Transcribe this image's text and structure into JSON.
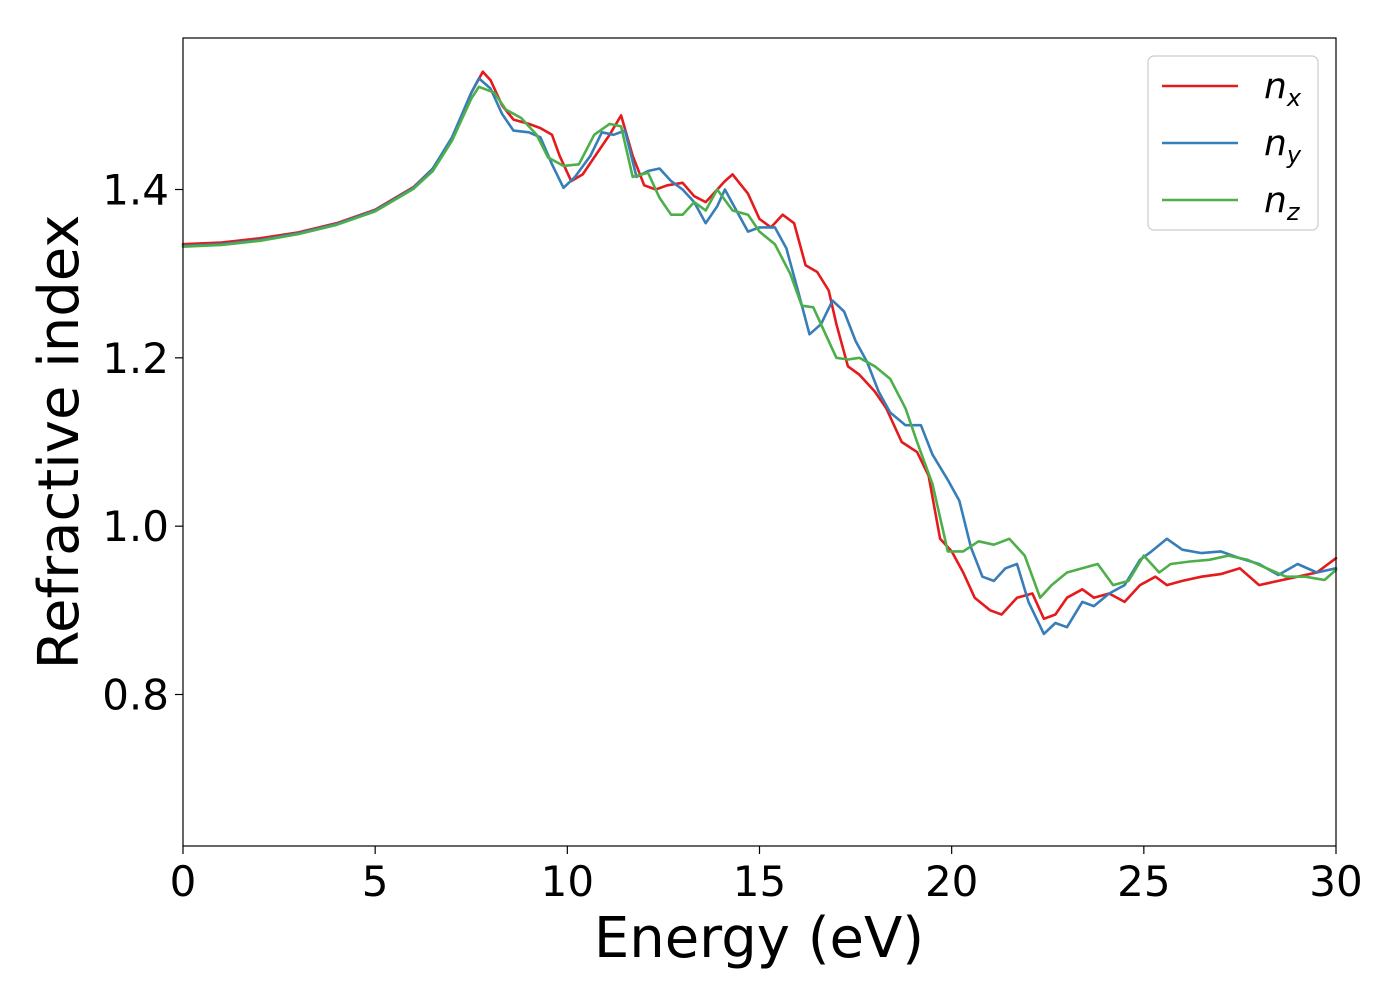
{
  "chart_data": {
    "type": "line",
    "title": "",
    "xlabel": "Energy (eV)",
    "ylabel": "Refractive index",
    "xlim": [
      0,
      30
    ],
    "ylim": [
      0.62,
      1.58
    ],
    "xticks": [
      0,
      5,
      10,
      15,
      20,
      25,
      30
    ],
    "xtick_labels": [
      "0",
      "5",
      "10",
      "15",
      "20",
      "25",
      "30"
    ],
    "yticks": [
      0.8,
      1.0,
      1.2,
      1.4
    ],
    "ytick_labels": [
      "0.8",
      "1.0",
      "1.2",
      "1.4"
    ],
    "grid": false,
    "legend_position": "top-right",
    "series": [
      {
        "name": "n",
        "subscript": "x",
        "color": "#e41a1c",
        "points": [
          [
            0,
            1.335
          ],
          [
            1,
            1.337
          ],
          [
            2,
            1.342
          ],
          [
            3,
            1.349
          ],
          [
            4,
            1.36
          ],
          [
            5,
            1.376
          ],
          [
            6,
            1.403
          ],
          [
            6.5,
            1.425
          ],
          [
            7,
            1.46
          ],
          [
            7.5,
            1.515
          ],
          [
            7.8,
            1.54
          ],
          [
            8,
            1.53
          ],
          [
            8.3,
            1.5
          ],
          [
            8.6,
            1.483
          ],
          [
            9,
            1.478
          ],
          [
            9.3,
            1.473
          ],
          [
            9.6,
            1.465
          ],
          [
            9.8,
            1.44
          ],
          [
            10.1,
            1.41
          ],
          [
            10.4,
            1.418
          ],
          [
            10.8,
            1.445
          ],
          [
            11.1,
            1.465
          ],
          [
            11.4,
            1.488
          ],
          [
            11.7,
            1.44
          ],
          [
            12,
            1.405
          ],
          [
            12.3,
            1.4
          ],
          [
            12.6,
            1.405
          ],
          [
            13,
            1.408
          ],
          [
            13.3,
            1.392
          ],
          [
            13.6,
            1.385
          ],
          [
            13.8,
            1.395
          ],
          [
            14.1,
            1.41
          ],
          [
            14.3,
            1.418
          ],
          [
            14.7,
            1.395
          ],
          [
            15,
            1.365
          ],
          [
            15.3,
            1.355
          ],
          [
            15.6,
            1.37
          ],
          [
            15.9,
            1.36
          ],
          [
            16.2,
            1.31
          ],
          [
            16.5,
            1.302
          ],
          [
            16.8,
            1.28
          ],
          [
            17,
            1.24
          ],
          [
            17.3,
            1.19
          ],
          [
            17.6,
            1.18
          ],
          [
            18,
            1.16
          ],
          [
            18.3,
            1.14
          ],
          [
            18.7,
            1.1
          ],
          [
            19.1,
            1.088
          ],
          [
            19.4,
            1.06
          ],
          [
            19.7,
            0.985
          ],
          [
            20,
            0.97
          ],
          [
            20.3,
            0.945
          ],
          [
            20.6,
            0.915
          ],
          [
            21,
            0.9
          ],
          [
            21.3,
            0.895
          ],
          [
            21.7,
            0.915
          ],
          [
            22.1,
            0.92
          ],
          [
            22.4,
            0.89
          ],
          [
            22.7,
            0.895
          ],
          [
            23,
            0.915
          ],
          [
            23.4,
            0.925
          ],
          [
            23.7,
            0.915
          ],
          [
            24.1,
            0.92
          ],
          [
            24.5,
            0.91
          ],
          [
            24.9,
            0.93
          ],
          [
            25.3,
            0.94
          ],
          [
            25.6,
            0.93
          ],
          [
            26,
            0.935
          ],
          [
            26.5,
            0.94
          ],
          [
            27,
            0.943
          ],
          [
            27.5,
            0.95
          ],
          [
            28,
            0.93
          ],
          [
            28.5,
            0.935
          ],
          [
            29,
            0.94
          ],
          [
            29.5,
            0.945
          ],
          [
            30,
            0.962
          ]
        ]
      },
      {
        "name": "n",
        "subscript": "y",
        "color": "#377eb8",
        "points": [
          [
            0,
            1.333
          ],
          [
            1,
            1.335
          ],
          [
            2,
            1.34
          ],
          [
            3,
            1.348
          ],
          [
            4,
            1.359
          ],
          [
            5,
            1.375
          ],
          [
            6,
            1.402
          ],
          [
            6.5,
            1.425
          ],
          [
            7,
            1.462
          ],
          [
            7.5,
            1.515
          ],
          [
            7.7,
            1.532
          ],
          [
            8,
            1.52
          ],
          [
            8.3,
            1.49
          ],
          [
            8.6,
            1.47
          ],
          [
            9,
            1.468
          ],
          [
            9.3,
            1.462
          ],
          [
            9.6,
            1.43
          ],
          [
            9.9,
            1.402
          ],
          [
            10.2,
            1.415
          ],
          [
            10.6,
            1.44
          ],
          [
            10.9,
            1.468
          ],
          [
            11.2,
            1.465
          ],
          [
            11.5,
            1.47
          ],
          [
            11.8,
            1.415
          ],
          [
            12.1,
            1.422
          ],
          [
            12.4,
            1.425
          ],
          [
            12.7,
            1.41
          ],
          [
            13,
            1.4
          ],
          [
            13.3,
            1.385
          ],
          [
            13.6,
            1.36
          ],
          [
            13.9,
            1.38
          ],
          [
            14.1,
            1.4
          ],
          [
            14.4,
            1.375
          ],
          [
            14.7,
            1.35
          ],
          [
            15,
            1.355
          ],
          [
            15.4,
            1.355
          ],
          [
            15.7,
            1.33
          ],
          [
            16,
            1.28
          ],
          [
            16.3,
            1.228
          ],
          [
            16.6,
            1.24
          ],
          [
            16.9,
            1.268
          ],
          [
            17.2,
            1.255
          ],
          [
            17.5,
            1.22
          ],
          [
            17.8,
            1.195
          ],
          [
            18.1,
            1.16
          ],
          [
            18.4,
            1.135
          ],
          [
            18.8,
            1.12
          ],
          [
            19.2,
            1.12
          ],
          [
            19.5,
            1.085
          ],
          [
            19.9,
            1.055
          ],
          [
            20.2,
            1.03
          ],
          [
            20.5,
            0.975
          ],
          [
            20.8,
            0.94
          ],
          [
            21.1,
            0.935
          ],
          [
            21.4,
            0.95
          ],
          [
            21.7,
            0.955
          ],
          [
            22,
            0.91
          ],
          [
            22.4,
            0.872
          ],
          [
            22.7,
            0.885
          ],
          [
            23,
            0.88
          ],
          [
            23.4,
            0.91
          ],
          [
            23.7,
            0.905
          ],
          [
            24.1,
            0.92
          ],
          [
            24.5,
            0.93
          ],
          [
            24.9,
            0.96
          ],
          [
            25.2,
            0.97
          ],
          [
            25.6,
            0.985
          ],
          [
            26,
            0.972
          ],
          [
            26.5,
            0.968
          ],
          [
            27,
            0.97
          ],
          [
            27.5,
            0.962
          ],
          [
            28,
            0.955
          ],
          [
            28.5,
            0.942
          ],
          [
            29,
            0.955
          ],
          [
            29.5,
            0.945
          ],
          [
            30,
            0.95
          ]
        ]
      },
      {
        "name": "n",
        "subscript": "z",
        "color": "#4daf4a",
        "points": [
          [
            0,
            1.332
          ],
          [
            1,
            1.334
          ],
          [
            2,
            1.339
          ],
          [
            3,
            1.347
          ],
          [
            4,
            1.358
          ],
          [
            5,
            1.374
          ],
          [
            6,
            1.401
          ],
          [
            6.5,
            1.422
          ],
          [
            7,
            1.458
          ],
          [
            7.5,
            1.508
          ],
          [
            7.7,
            1.522
          ],
          [
            8.1,
            1.515
          ],
          [
            8.4,
            1.495
          ],
          [
            8.8,
            1.485
          ],
          [
            9.2,
            1.465
          ],
          [
            9.5,
            1.438
          ],
          [
            9.9,
            1.428
          ],
          [
            10.3,
            1.43
          ],
          [
            10.7,
            1.465
          ],
          [
            11.1,
            1.478
          ],
          [
            11.4,
            1.475
          ],
          [
            11.7,
            1.415
          ],
          [
            12.1,
            1.42
          ],
          [
            12.4,
            1.39
          ],
          [
            12.7,
            1.37
          ],
          [
            13,
            1.37
          ],
          [
            13.3,
            1.385
          ],
          [
            13.6,
            1.375
          ],
          [
            13.9,
            1.4
          ],
          [
            14.3,
            1.375
          ],
          [
            14.7,
            1.37
          ],
          [
            15,
            1.35
          ],
          [
            15.4,
            1.335
          ],
          [
            15.8,
            1.3
          ],
          [
            16.1,
            1.262
          ],
          [
            16.4,
            1.26
          ],
          [
            16.7,
            1.23
          ],
          [
            17,
            1.2
          ],
          [
            17.3,
            1.198
          ],
          [
            17.6,
            1.2
          ],
          [
            18,
            1.19
          ],
          [
            18.4,
            1.175
          ],
          [
            18.8,
            1.14
          ],
          [
            19.1,
            1.1
          ],
          [
            19.5,
            1.05
          ],
          [
            19.9,
            0.97
          ],
          [
            20.3,
            0.97
          ],
          [
            20.7,
            0.982
          ],
          [
            21.1,
            0.978
          ],
          [
            21.5,
            0.985
          ],
          [
            21.9,
            0.965
          ],
          [
            22.3,
            0.915
          ],
          [
            22.6,
            0.93
          ],
          [
            23,
            0.945
          ],
          [
            23.4,
            0.95
          ],
          [
            23.8,
            0.955
          ],
          [
            24.2,
            0.93
          ],
          [
            24.6,
            0.935
          ],
          [
            25,
            0.965
          ],
          [
            25.4,
            0.945
          ],
          [
            25.7,
            0.955
          ],
          [
            26.2,
            0.958
          ],
          [
            26.7,
            0.96
          ],
          [
            27.2,
            0.965
          ],
          [
            27.7,
            0.96
          ],
          [
            28.2,
            0.95
          ],
          [
            28.7,
            0.94
          ],
          [
            29.2,
            0.94
          ],
          [
            29.7,
            0.936
          ],
          [
            30,
            0.948
          ]
        ]
      }
    ]
  }
}
